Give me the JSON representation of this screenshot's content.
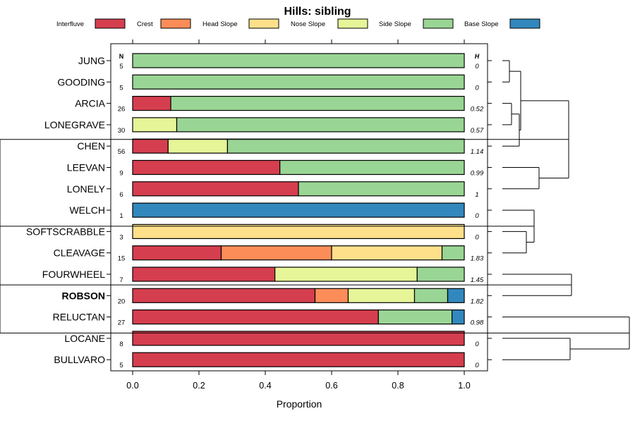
{
  "chart_data": {
    "type": "bar",
    "stacked": true,
    "orientation": "horizontal",
    "title": "Hills: sibling",
    "xlabel": "Proportion",
    "ylabel": "",
    "xlim": [
      0,
      1
    ],
    "xticks": [
      "0.0",
      "0.2",
      "0.4",
      "0.6",
      "0.8",
      "1.0"
    ],
    "n_header": "N",
    "h_header": "H",
    "highlight": "ROBSON",
    "series": [
      {
        "name": "Interfluve",
        "color": "#d53e4f"
      },
      {
        "name": "Crest",
        "color": "#fc8d59"
      },
      {
        "name": "Head Slope",
        "color": "#fee08b"
      },
      {
        "name": "Nose Slope",
        "color": "#e6f598"
      },
      {
        "name": "Side Slope",
        "color": "#99d594"
      },
      {
        "name": "Base Slope",
        "color": "#3288bd"
      }
    ],
    "rows": [
      {
        "label": "JUNG",
        "n": "5",
        "h": "0",
        "values": [
          0,
          0,
          0,
          0,
          1,
          0
        ]
      },
      {
        "label": "GOODING",
        "n": "5",
        "h": "0",
        "values": [
          0,
          0,
          0,
          0,
          1,
          0
        ]
      },
      {
        "label": "ARCIA",
        "n": "26",
        "h": "0.52",
        "values": [
          0.115,
          0,
          0,
          0,
          0.885,
          0
        ]
      },
      {
        "label": "LONEGRAVE",
        "n": "30",
        "h": "0.57",
        "values": [
          0,
          0,
          0,
          0.133,
          0.867,
          0
        ]
      },
      {
        "label": "CHEN",
        "n": "56",
        "h": "1.14",
        "values": [
          0.107,
          0,
          0,
          0.179,
          0.714,
          0
        ]
      },
      {
        "label": "LEEVAN",
        "n": "9",
        "h": "0.99",
        "values": [
          0.444,
          0,
          0,
          0,
          0.556,
          0
        ]
      },
      {
        "label": "LONELY",
        "n": "6",
        "h": "1",
        "values": [
          0.5,
          0,
          0,
          0,
          0.5,
          0
        ]
      },
      {
        "label": "WELCH",
        "n": "1",
        "h": "0",
        "values": [
          0,
          0,
          0,
          0,
          0,
          1
        ]
      },
      {
        "label": "SOFTSCRABBLE",
        "n": "3",
        "h": "0",
        "values": [
          0,
          0,
          1,
          0,
          0,
          0
        ]
      },
      {
        "label": "CLEAVAGE",
        "n": "15",
        "h": "1.83",
        "values": [
          0.267,
          0.333,
          0.333,
          0,
          0.067,
          0
        ]
      },
      {
        "label": "FOURWHEEL",
        "n": "7",
        "h": "1.45",
        "values": [
          0.429,
          0,
          0,
          0.429,
          0.142,
          0
        ]
      },
      {
        "label": "ROBSON",
        "n": "20",
        "h": "1.82",
        "values": [
          0.55,
          0.1,
          0,
          0.2,
          0.1,
          0.05
        ]
      },
      {
        "label": "RELUCTAN",
        "n": "27",
        "h": "0.98",
        "values": [
          0.741,
          0,
          0,
          0,
          0.222,
          0.037
        ]
      },
      {
        "label": "LOCANE",
        "n": "8",
        "h": "0",
        "values": [
          1,
          0,
          0,
          0,
          0,
          0
        ]
      },
      {
        "label": "BULLVARO",
        "n": "5",
        "h": "0",
        "values": [
          1,
          0,
          0,
          0,
          0,
          0
        ]
      }
    ],
    "dendrogram": {
      "left": {
        "left": {
          "left": {
            "left": "JUNG",
            "right": "GOODING"
          },
          "right": {
            "left": {
              "left": "ARCIA",
              "right": "LONEGRAVE"
            },
            "right": "CHEN"
          }
        },
        "right": {
          "left": "LEEVAN",
          "right": "LONELY"
        }
      },
      "right": {
        "left": {
          "left": "WELCH",
          "right": {
            "left": "SOFTSCRABBLE",
            "right": "CLEAVAGE"
          }
        },
        "right": {
          "left": {
            "left": "FOURWHEEL",
            "right": "ROBSON"
          },
          "right": {
            "left": "RELUCTAN",
            "right": {
              "left": "LOCANE",
              "right": "BULLVARO"
            }
          }
        }
      }
    }
  }
}
